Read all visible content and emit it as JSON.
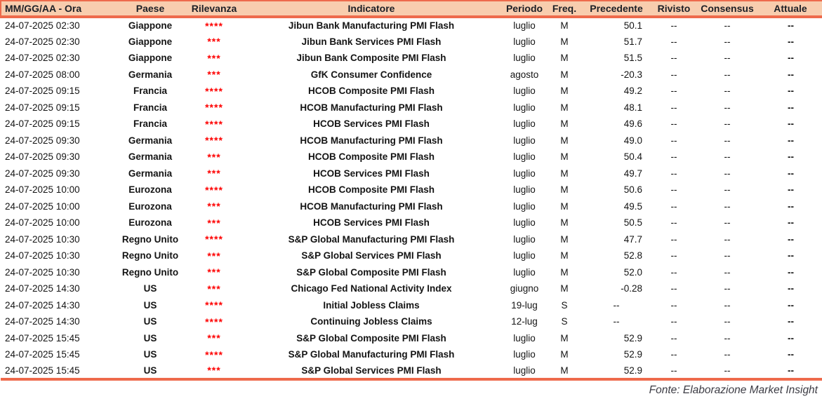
{
  "table": {
    "columns": [
      {
        "key": "date",
        "label": "MM/GG/AA - Ora"
      },
      {
        "key": "country",
        "label": "Paese"
      },
      {
        "key": "stars",
        "label": "Rilevanza"
      },
      {
        "key": "indicator",
        "label": "Indicatore"
      },
      {
        "key": "period",
        "label": "Periodo"
      },
      {
        "key": "freq",
        "label": "Freq."
      },
      {
        "key": "prev",
        "label": "Precedente"
      },
      {
        "key": "rev",
        "label": "Rivisto"
      },
      {
        "key": "cons",
        "label": "Consensus"
      },
      {
        "key": "act",
        "label": "Attuale"
      }
    ],
    "rows": [
      {
        "date": "24-07-2025 02:30",
        "country": "Giappone",
        "stars": "****",
        "indicator": "Jibun Bank Manufacturing PMI Flash",
        "period": "luglio",
        "freq": "M",
        "prev": "50.1",
        "rev": "--",
        "cons": "--",
        "act": "--"
      },
      {
        "date": "24-07-2025 02:30",
        "country": "Giappone",
        "stars": "***",
        "indicator": "Jibun Bank Services PMI Flash",
        "period": "luglio",
        "freq": "M",
        "prev": "51.7",
        "rev": "--",
        "cons": "--",
        "act": "--"
      },
      {
        "date": "24-07-2025 02:30",
        "country": "Giappone",
        "stars": "***",
        "indicator": "Jibun Bank Composite PMI Flash",
        "period": "luglio",
        "freq": "M",
        "prev": "51.5",
        "rev": "--",
        "cons": "--",
        "act": "--"
      },
      {
        "date": "24-07-2025 08:00",
        "country": "Germania",
        "stars": "***",
        "indicator": "GfK Consumer Confidence",
        "period": "agosto",
        "freq": "M",
        "prev": "-20.3",
        "rev": "--",
        "cons": "--",
        "act": "--"
      },
      {
        "date": "24-07-2025 09:15",
        "country": "Francia",
        "stars": "****",
        "indicator": "HCOB Composite PMI Flash",
        "period": "luglio",
        "freq": "M",
        "prev": "49.2",
        "rev": "--",
        "cons": "--",
        "act": "--"
      },
      {
        "date": "24-07-2025 09:15",
        "country": "Francia",
        "stars": "****",
        "indicator": "HCOB Manufacturing PMI Flash",
        "period": "luglio",
        "freq": "M",
        "prev": "48.1",
        "rev": "--",
        "cons": "--",
        "act": "--"
      },
      {
        "date": "24-07-2025 09:15",
        "country": "Francia",
        "stars": "****",
        "indicator": "HCOB Services PMI Flash",
        "period": "luglio",
        "freq": "M",
        "prev": "49.6",
        "rev": "--",
        "cons": "--",
        "act": "--"
      },
      {
        "date": "24-07-2025 09:30",
        "country": "Germania",
        "stars": "****",
        "indicator": "HCOB Manufacturing PMI Flash",
        "period": "luglio",
        "freq": "M",
        "prev": "49.0",
        "rev": "--",
        "cons": "--",
        "act": "--"
      },
      {
        "date": "24-07-2025 09:30",
        "country": "Germania",
        "stars": "***",
        "indicator": "HCOB Composite PMI Flash",
        "period": "luglio",
        "freq": "M",
        "prev": "50.4",
        "rev": "--",
        "cons": "--",
        "act": "--"
      },
      {
        "date": "24-07-2025 09:30",
        "country": "Germania",
        "stars": "***",
        "indicator": "HCOB Services PMI Flash",
        "period": "luglio",
        "freq": "M",
        "prev": "49.7",
        "rev": "--",
        "cons": "--",
        "act": "--"
      },
      {
        "date": "24-07-2025 10:00",
        "country": "Eurozona",
        "stars": "****",
        "indicator": "HCOB Composite PMI Flash",
        "period": "luglio",
        "freq": "M",
        "prev": "50.6",
        "rev": "--",
        "cons": "--",
        "act": "--"
      },
      {
        "date": "24-07-2025 10:00",
        "country": "Eurozona",
        "stars": "***",
        "indicator": "HCOB Manufacturing PMI Flash",
        "period": "luglio",
        "freq": "M",
        "prev": "49.5",
        "rev": "--",
        "cons": "--",
        "act": "--"
      },
      {
        "date": "24-07-2025 10:00",
        "country": "Eurozona",
        "stars": "***",
        "indicator": "HCOB Services PMI Flash",
        "period": "luglio",
        "freq": "M",
        "prev": "50.5",
        "rev": "--",
        "cons": "--",
        "act": "--"
      },
      {
        "date": "24-07-2025 10:30",
        "country": "Regno Unito",
        "stars": "****",
        "indicator": "S&P Global Manufacturing PMI Flash",
        "period": "luglio",
        "freq": "M",
        "prev": "47.7",
        "rev": "--",
        "cons": "--",
        "act": "--"
      },
      {
        "date": "24-07-2025 10:30",
        "country": "Regno Unito",
        "stars": "***",
        "indicator": "S&P Global Services PMI Flash",
        "period": "luglio",
        "freq": "M",
        "prev": "52.8",
        "rev": "--",
        "cons": "--",
        "act": "--"
      },
      {
        "date": "24-07-2025 10:30",
        "country": "Regno Unito",
        "stars": "***",
        "indicator": "S&P Global Composite PMI Flash",
        "period": "luglio",
        "freq": "M",
        "prev": "52.0",
        "rev": "--",
        "cons": "--",
        "act": "--"
      },
      {
        "date": "24-07-2025 14:30",
        "country": "US",
        "stars": "***",
        "indicator": "Chicago Fed National Activity Index",
        "period": "giugno",
        "freq": "M",
        "prev": "-0.28",
        "rev": "--",
        "cons": "--",
        "act": "--"
      },
      {
        "date": "24-07-2025 14:30",
        "country": "US",
        "stars": "****",
        "indicator": "Initial Jobless Claims",
        "period": "19-lug",
        "freq": "S",
        "prev": "--",
        "rev": "--",
        "cons": "--",
        "act": "--"
      },
      {
        "date": "24-07-2025 14:30",
        "country": "US",
        "stars": "****",
        "indicator": "Continuing Jobless Claims",
        "period": "12-lug",
        "freq": "S",
        "prev": "--",
        "rev": "--",
        "cons": "--",
        "act": "--"
      },
      {
        "date": "24-07-2025 15:45",
        "country": "US",
        "stars": "***",
        "indicator": "S&P Global Composite PMI Flash",
        "period": "luglio",
        "freq": "M",
        "prev": "52.9",
        "rev": "--",
        "cons": "--",
        "act": "--"
      },
      {
        "date": "24-07-2025 15:45",
        "country": "US",
        "stars": "****",
        "indicator": "S&P Global Manufacturing PMI Flash",
        "period": "luglio",
        "freq": "M",
        "prev": "52.9",
        "rev": "--",
        "cons": "--",
        "act": "--"
      },
      {
        "date": "24-07-2025 15:45",
        "country": "US",
        "stars": "***",
        "indicator": "S&P Global Services PMI Flash",
        "period": "luglio",
        "freq": "M",
        "prev": "52.9",
        "rev": "--",
        "cons": "--",
        "act": "--"
      }
    ]
  },
  "footer": {
    "source": "Fonte: Elaborazione Market Insight"
  },
  "colors": {
    "header_background": "#F8CDAE",
    "accent_border": "#EE6A4C",
    "relevance_stars": "#FE0000",
    "text": "#141414"
  }
}
